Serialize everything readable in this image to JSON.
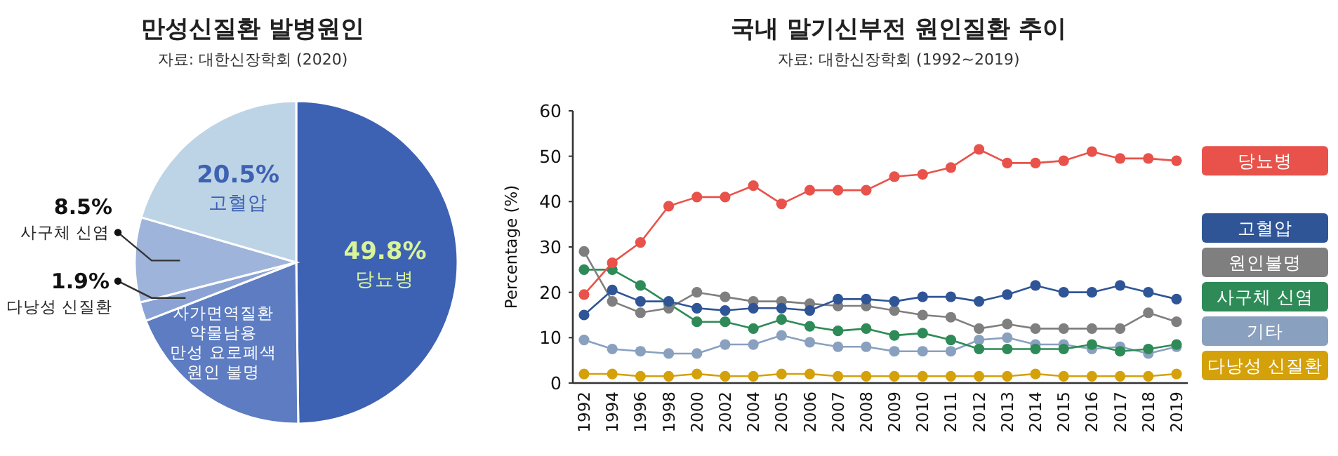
{
  "chart_data": [
    {
      "type": "pie",
      "title": "만성신질환 발병원인",
      "subtitle": "자료: 대한신장학회 (2020)",
      "categories": [
        "당뇨병",
        "자가면역질환\n약물남용\n만성 요로폐색\n원인 불명",
        "다낭성 신질환",
        "사구체 신염",
        "고혈압"
      ],
      "values": [
        49.8,
        19.3,
        1.9,
        8.5,
        20.5
      ],
      "value_labels": [
        "49.8%",
        null,
        "1.9%",
        "8.5%",
        "20.5%"
      ],
      "colors": [
        "#3d61b3",
        "#5d7cc1",
        "#8aa3d4",
        "#9fb4da",
        "#bdd4e6"
      ]
    },
    {
      "type": "line",
      "title": "국내 말기신부전 원인질환 추이",
      "subtitle": "자료: 대한신장학회 (1992~2019)",
      "ylabel": "Percentage (%)",
      "categories": [
        "1992",
        "1994",
        "1996",
        "1998",
        "2000",
        "2002",
        "2004",
        "2005",
        "2006",
        "2007",
        "2008",
        "2009",
        "2010",
        "2011",
        "2012",
        "2013",
        "2014",
        "2015",
        "2016",
        "2017",
        "2018",
        "2019"
      ],
      "ylim": [
        0,
        60
      ],
      "yticks": [
        0,
        10,
        20,
        30,
        40,
        50,
        60
      ],
      "marker": "circle",
      "legend": "right",
      "grid": false,
      "series": [
        {
          "name": "당뇨병",
          "color": "#e8524a",
          "values": [
            19.5,
            26.5,
            31,
            39,
            41,
            41,
            43.5,
            39.5,
            42.5,
            42.5,
            42.5,
            45.5,
            46,
            47.5,
            51.5,
            48.5,
            48.5,
            49,
            51,
            49.5,
            49.5,
            49
          ]
        },
        {
          "name": "고혈압",
          "color": "#2f5597",
          "values": [
            15,
            20.5,
            18,
            18,
            16.5,
            16,
            16.5,
            16.5,
            16,
            18.5,
            18.5,
            18,
            19,
            19,
            18,
            19.5,
            21.5,
            20,
            20,
            21.5,
            20,
            18.5
          ]
        },
        {
          "name": "원인불명",
          "color": "#7f7f7f",
          "values": [
            29,
            18,
            15.5,
            16.5,
            20,
            19,
            18,
            18,
            17.5,
            17,
            17,
            16,
            15,
            14.5,
            12,
            13,
            12,
            12,
            12,
            12,
            15.5,
            13.5
          ]
        },
        {
          "name": "사구체 신염",
          "color": "#2e8b57",
          "values": [
            25,
            25,
            21.5,
            17.5,
            13.5,
            13.5,
            12,
            14,
            12.5,
            11.5,
            12,
            10.5,
            11,
            9.5,
            7.5,
            7.5,
            7.5,
            7.5,
            8.5,
            7,
            7.5,
            8.5
          ]
        },
        {
          "name": "기타",
          "color": "#8aa0bf",
          "values": [
            9.5,
            7.5,
            7,
            6.5,
            6.5,
            8.5,
            8.5,
            10.5,
            9,
            8,
            8,
            7,
            7,
            7,
            9.5,
            10,
            8.5,
            8.5,
            7.5,
            8,
            6.5,
            8
          ]
        },
        {
          "name": "다낭성 신질환",
          "color": "#d4a10a",
          "values": [
            2,
            2,
            1.5,
            1.5,
            2,
            1.5,
            1.5,
            2,
            2,
            1.5,
            1.5,
            1.5,
            1.5,
            1.5,
            1.5,
            1.5,
            2,
            1.5,
            1.5,
            1.5,
            1.5,
            2
          ]
        }
      ]
    }
  ]
}
